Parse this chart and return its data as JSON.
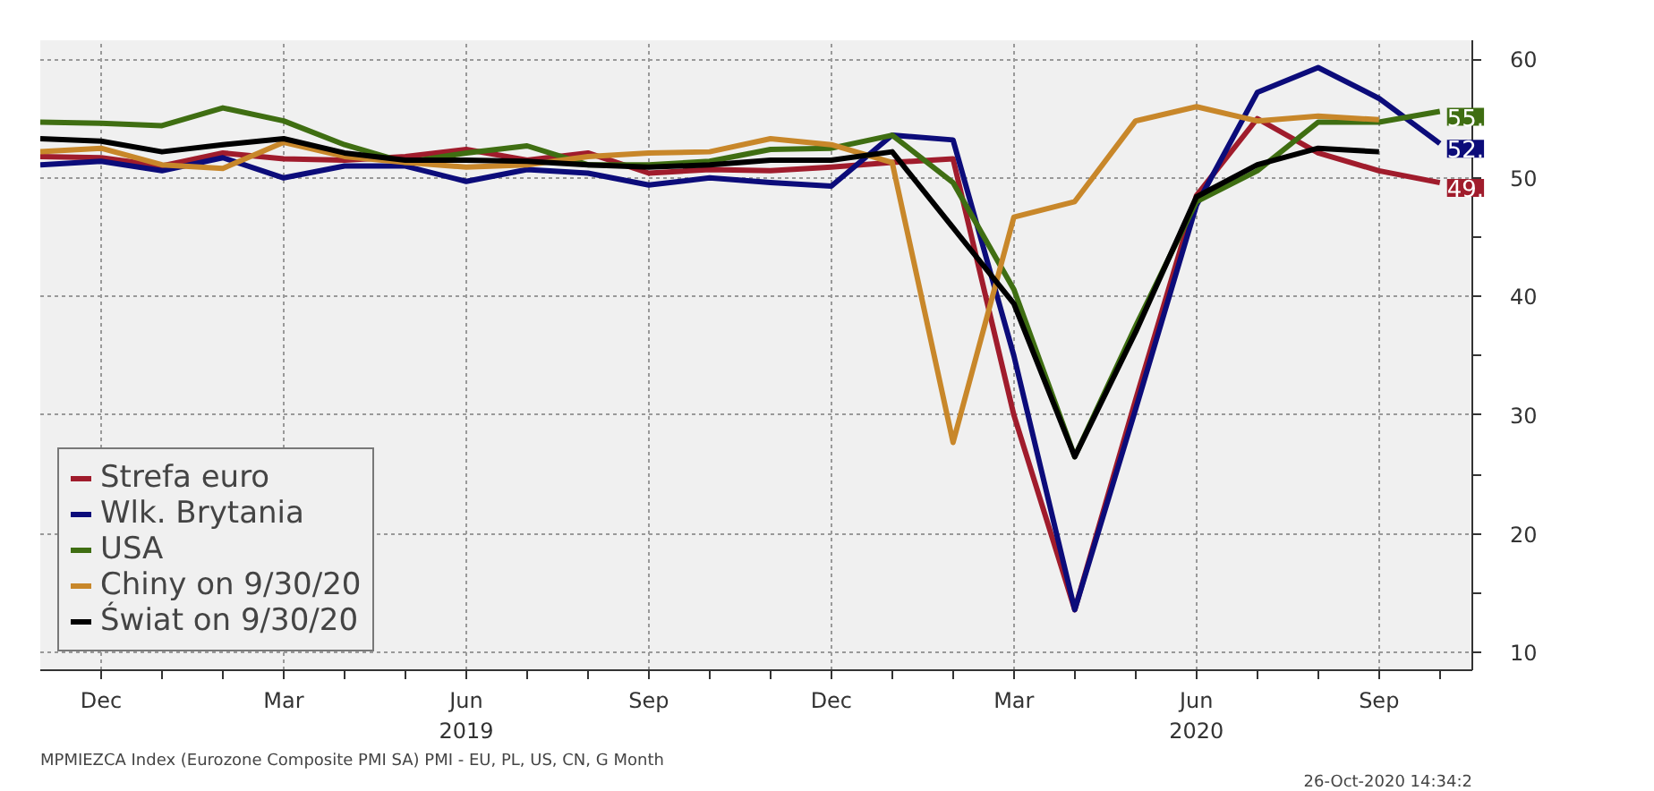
{
  "chart_data": {
    "type": "line",
    "x": [
      "2018-11",
      "2018-12",
      "2019-01",
      "2019-02",
      "2019-03",
      "2019-04",
      "2019-05",
      "2019-06",
      "2019-07",
      "2019-08",
      "2019-09",
      "2019-10",
      "2019-11",
      "2019-12",
      "2020-01",
      "2020-02",
      "2020-03",
      "2020-04",
      "2020-05",
      "2020-06",
      "2020-07",
      "2020-08",
      "2020-09",
      "2020-10"
    ],
    "series": [
      {
        "name": "Strefa euro",
        "color": "#a01c2c",
        "values": [
          51.8,
          51.7,
          51.0,
          52.1,
          51.6,
          51.5,
          51.8,
          52.4,
          51.5,
          52.1,
          50.4,
          50.7,
          50.6,
          50.9,
          51.3,
          51.6,
          30.0,
          13.6,
          31.3,
          48.5,
          55.0,
          52.1,
          50.6,
          49.6
        ]
      },
      {
        "name": "Wlk. Brytania",
        "color": "#0c0c7a",
        "values": [
          51.1,
          51.4,
          50.6,
          51.7,
          50.0,
          51.0,
          51.0,
          49.7,
          50.7,
          50.4,
          49.4,
          50.0,
          49.6,
          49.3,
          53.6,
          53.2,
          35.0,
          13.6,
          30.5,
          47.7,
          57.2,
          59.3,
          56.7,
          52.9
        ]
      },
      {
        "name": "USA",
        "color": "#3f6e12",
        "values": [
          54.7,
          54.6,
          54.4,
          55.9,
          54.8,
          52.8,
          51.3,
          52.1,
          52.7,
          51.1,
          51.1,
          51.4,
          52.4,
          52.5,
          53.6,
          49.6,
          40.6,
          26.5,
          37.5,
          48.0,
          50.6,
          54.7,
          54.7,
          55.6
        ]
      },
      {
        "name": "Chiny on 9/30/20",
        "color": "#c8872a",
        "values": [
          52.2,
          52.5,
          51.1,
          50.8,
          53.0,
          51.8,
          51.3,
          50.9,
          51.1,
          51.8,
          52.1,
          52.2,
          53.3,
          52.8,
          51.3,
          27.7,
          46.7,
          48.0,
          54.8,
          56.0,
          54.8,
          55.2,
          54.9,
          null
        ]
      },
      {
        "name": "Świat on 9/30/20",
        "color": "#000000",
        "values": [
          53.3,
          53.1,
          52.2,
          52.8,
          53.3,
          52.1,
          51.5,
          51.5,
          51.4,
          51.1,
          50.9,
          51.1,
          51.5,
          51.5,
          52.2,
          45.8,
          39.4,
          26.5,
          37.0,
          48.4,
          51.1,
          52.5,
          52.2,
          null
        ]
      }
    ],
    "xlim": [
      "2018-11",
      "2020-10-17"
    ],
    "xticks": [
      {
        "value": "2018-12",
        "label": "Dec"
      },
      {
        "value": "2019-01",
        "label": null
      },
      {
        "value": "2019-02",
        "label": null
      },
      {
        "value": "2019-03",
        "label": "Mar"
      },
      {
        "value": "2019-04",
        "label": null
      },
      {
        "value": "2019-05",
        "label": null
      },
      {
        "value": "2019-06",
        "label": "Jun\n2019"
      },
      {
        "value": "2019-07",
        "label": null
      },
      {
        "value": "2019-08",
        "label": null
      },
      {
        "value": "2019-09",
        "label": "Sep"
      },
      {
        "value": "2019-10",
        "label": null
      },
      {
        "value": "2019-11",
        "label": null
      },
      {
        "value": "2019-12",
        "label": "Dec"
      },
      {
        "value": "2020-01",
        "label": null
      },
      {
        "value": "2020-02",
        "label": null
      },
      {
        "value": "2020-03",
        "label": "Mar"
      },
      {
        "value": "2020-04",
        "label": null
      },
      {
        "value": "2020-05",
        "label": null
      },
      {
        "value": "2020-06",
        "label": "Jun\n2020"
      },
      {
        "value": "2020-07",
        "label": null
      },
      {
        "value": "2020-08",
        "label": null
      },
      {
        "value": "2020-09",
        "label": "Sep"
      },
      {
        "value": "2020-10",
        "label": null
      }
    ],
    "ylim": [
      8.5,
      61.6
    ],
    "yticks": [
      10,
      {
        "value": 15,
        "label": null
      },
      20,
      {
        "value": 25,
        "label": null
      },
      30,
      {
        "value": 35,
        "label": null
      },
      40,
      {
        "value": 45,
        "label": null
      },
      50,
      {
        "value": 55,
        "label": null
      },
      60
    ],
    "grid": true,
    "legend": "bottom left",
    "marker": "none",
    "line_style": "solid",
    "annotations": [
      {
        "text": "55.",
        "x": "2020-10",
        "y": 55.6
      },
      {
        "text": "52.",
        "x": "2020-10",
        "y": 52.9
      },
      {
        "text": "49.",
        "x": "2020-10",
        "y": 49.6
      },
      "MPMIEZCA Index (Eurozone Composite PMI SA) PMI - EU, PL, US, CN, G  Month",
      "26-Oct-2020 14:34:2"
    ]
  }
}
